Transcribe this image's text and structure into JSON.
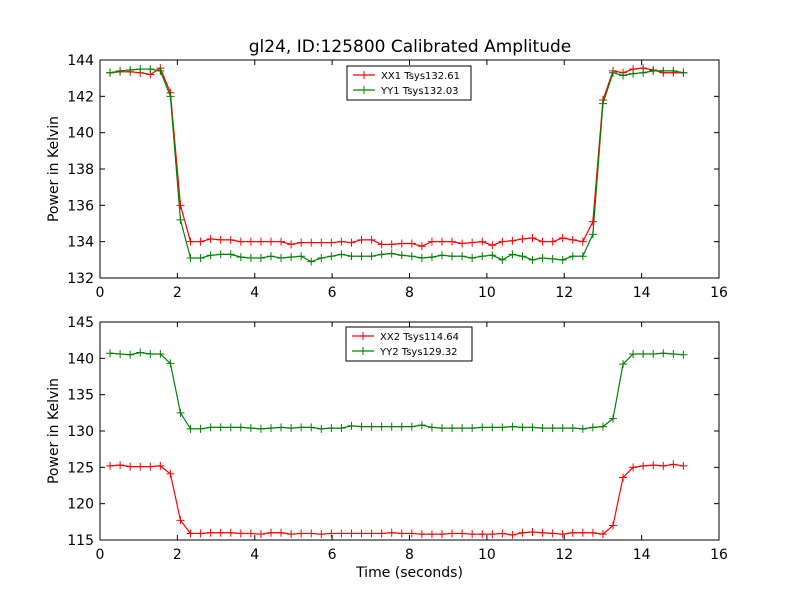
{
  "title": "gl24, ID:125800 Calibrated Amplitude",
  "chart_data": [
    {
      "type": "line",
      "title": "gl24, ID:125800 Calibrated Amplitude",
      "xlabel": "",
      "ylabel": "Power in Kelvin",
      "xlim": [
        0,
        16
      ],
      "ylim": [
        132,
        144
      ],
      "xticks": [
        "0",
        "2",
        "4",
        "6",
        "8",
        "10",
        "12",
        "14",
        "16"
      ],
      "yticks": [
        "132",
        "134",
        "136",
        "138",
        "140",
        "142",
        "144"
      ],
      "grid": false,
      "legend": "upper center",
      "x": [
        0.26,
        0.52,
        0.78,
        1.04,
        1.3,
        1.56,
        1.82,
        2.08,
        2.34,
        2.6,
        2.86,
        3.12,
        3.38,
        3.64,
        3.9,
        4.16,
        4.42,
        4.68,
        4.94,
        5.2,
        5.46,
        5.72,
        5.98,
        6.24,
        6.5,
        6.76,
        7.02,
        7.28,
        7.54,
        7.8,
        8.06,
        8.32,
        8.58,
        8.84,
        9.1,
        9.36,
        9.62,
        9.88,
        10.14,
        10.4,
        10.66,
        10.92,
        11.18,
        11.44,
        11.7,
        11.96,
        12.22,
        12.48,
        12.74,
        13.0,
        13.26,
        13.52,
        13.78,
        14.04,
        14.3,
        14.56,
        14.82,
        15.08
      ],
      "series": [
        {
          "name": "XX1 Tsys132.61",
          "color": "#ff0000",
          "values": [
            143.3,
            143.35,
            143.35,
            143.3,
            143.2,
            143.55,
            142.2,
            136.0,
            134.0,
            134.0,
            134.15,
            134.1,
            134.1,
            134.0,
            134.0,
            134.0,
            134.0,
            134.0,
            133.85,
            133.95,
            133.95,
            133.95,
            133.95,
            134.0,
            133.95,
            134.1,
            134.1,
            133.85,
            133.85,
            133.9,
            133.9,
            133.75,
            134.0,
            134.0,
            134.0,
            133.9,
            133.95,
            134.0,
            133.8,
            134.0,
            134.05,
            134.15,
            134.2,
            134.0,
            134.0,
            134.2,
            134.1,
            134.0,
            135.1,
            141.8,
            143.4,
            143.3,
            143.5,
            143.55,
            143.45,
            143.3,
            143.3,
            143.3
          ]
        },
        {
          "name": "YY1 Tsys132.03",
          "color": "#008000",
          "values": [
            143.3,
            143.4,
            143.45,
            143.5,
            143.5,
            143.4,
            142.0,
            135.2,
            133.1,
            133.1,
            133.25,
            133.3,
            133.3,
            133.15,
            133.1,
            133.1,
            133.2,
            133.1,
            133.15,
            133.2,
            132.9,
            133.1,
            133.2,
            133.3,
            133.2,
            133.2,
            133.2,
            133.3,
            133.35,
            133.25,
            133.2,
            133.1,
            133.15,
            133.25,
            133.2,
            133.2,
            133.1,
            133.2,
            133.25,
            133.0,
            133.3,
            133.2,
            133.0,
            133.1,
            133.05,
            133.0,
            133.2,
            133.2,
            134.4,
            141.6,
            143.3,
            143.15,
            143.25,
            143.3,
            143.4,
            143.4,
            143.4,
            143.3
          ]
        }
      ]
    },
    {
      "type": "line",
      "title": "",
      "xlabel": "Time (seconds)",
      "ylabel": "Power in Kelvin",
      "xlim": [
        0,
        16
      ],
      "ylim": [
        115,
        145
      ],
      "xticks": [
        "0",
        "2",
        "4",
        "6",
        "8",
        "10",
        "12",
        "14",
        "16"
      ],
      "yticks": [
        "115",
        "120",
        "125",
        "130",
        "135",
        "140",
        "145"
      ],
      "grid": false,
      "legend": "upper center",
      "x": [
        0.26,
        0.52,
        0.78,
        1.04,
        1.3,
        1.56,
        1.82,
        2.08,
        2.34,
        2.6,
        2.86,
        3.12,
        3.38,
        3.64,
        3.9,
        4.16,
        4.42,
        4.68,
        4.94,
        5.2,
        5.46,
        5.72,
        5.98,
        6.24,
        6.5,
        6.76,
        7.02,
        7.28,
        7.54,
        7.8,
        8.06,
        8.32,
        8.58,
        8.84,
        9.1,
        9.36,
        9.62,
        9.88,
        10.14,
        10.4,
        10.66,
        10.92,
        11.18,
        11.44,
        11.7,
        11.96,
        12.22,
        12.48,
        12.74,
        13.0,
        13.26,
        13.52,
        13.78,
        14.04,
        14.3,
        14.56,
        14.82,
        15.08
      ],
      "series": [
        {
          "name": "XX2 Tsys114.64",
          "color": "#ff0000",
          "values": [
            125.2,
            125.3,
            125.1,
            125.1,
            125.1,
            125.2,
            124.1,
            117.7,
            115.9,
            115.9,
            116.0,
            116.0,
            116.0,
            115.9,
            115.9,
            115.8,
            116.0,
            116.0,
            115.8,
            115.9,
            115.9,
            115.8,
            115.9,
            115.9,
            115.9,
            115.9,
            115.9,
            115.9,
            116.0,
            115.9,
            115.9,
            115.8,
            115.8,
            115.8,
            115.9,
            115.9,
            115.8,
            115.8,
            115.8,
            115.9,
            115.7,
            116.0,
            116.1,
            116.0,
            115.9,
            115.8,
            116.0,
            116.0,
            116.0,
            115.8,
            117.0,
            123.6,
            125.0,
            125.2,
            125.3,
            125.2,
            125.4,
            125.2
          ]
        },
        {
          "name": "YY2 Tsys129.32",
          "color": "#008000",
          "values": [
            140.7,
            140.6,
            140.5,
            140.8,
            140.6,
            140.6,
            139.3,
            132.5,
            130.3,
            130.3,
            130.5,
            130.5,
            130.5,
            130.5,
            130.4,
            130.3,
            130.4,
            130.5,
            130.4,
            130.5,
            130.5,
            130.3,
            130.4,
            130.4,
            130.7,
            130.6,
            130.6,
            130.6,
            130.6,
            130.6,
            130.6,
            130.8,
            130.5,
            130.4,
            130.4,
            130.4,
            130.4,
            130.5,
            130.5,
            130.5,
            130.6,
            130.5,
            130.5,
            130.4,
            130.4,
            130.4,
            130.4,
            130.3,
            130.5,
            130.6,
            131.7,
            139.2,
            140.6,
            140.6,
            140.6,
            140.7,
            140.6,
            140.5
          ]
        }
      ]
    }
  ]
}
